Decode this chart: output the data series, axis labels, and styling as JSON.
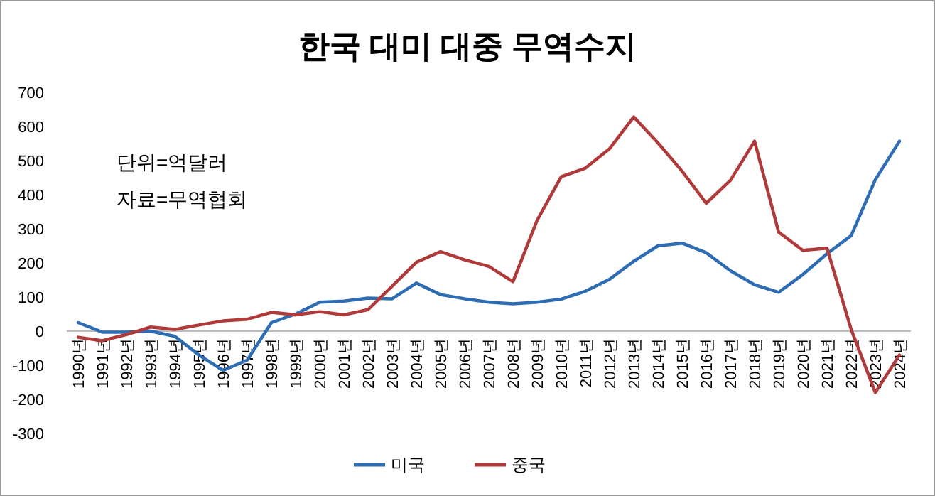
{
  "chart_data": {
    "type": "line",
    "title": "한국 대미 대중 무역수지",
    "categories": [
      "1990년",
      "1991년",
      "1992년",
      "1993년",
      "1994년",
      "1995년",
      "1996년",
      "1997년",
      "1998년",
      "1999년",
      "2000년",
      "2001년",
      "2002년",
      "2003년",
      "2004년",
      "2005년",
      "2006년",
      "2007년",
      "2008년",
      "2009년",
      "2010년",
      "2011년",
      "2012년",
      "2013년",
      "2014년",
      "2015년",
      "2016년",
      "2017년",
      "2018년",
      "2019년",
      "2020년",
      "2021년",
      "2022년",
      "2023년",
      "2024년"
    ],
    "series": [
      {
        "name": "미국",
        "color": "#2e6db4",
        "values": [
          25,
          -3,
          -3,
          0,
          -15,
          -70,
          -115,
          -85,
          25,
          50,
          85,
          88,
          97,
          95,
          141,
          107,
          95,
          85,
          80,
          85,
          94,
          117,
          152,
          205,
          250,
          258,
          230,
          177,
          136,
          114,
          166,
          227,
          280,
          444,
          557
        ]
      },
      {
        "name": "중국",
        "color": "#b03a3a",
        "values": [
          -18,
          -28,
          -10,
          12,
          5,
          18,
          30,
          35,
          55,
          48,
          57,
          48,
          63,
          132,
          202,
          233,
          209,
          190,
          145,
          325,
          453,
          478,
          535,
          628,
          552,
          469,
          375,
          442,
          557,
          290,
          237,
          243,
          5,
          -180,
          -70
        ]
      }
    ],
    "ylim": [
      -300,
      700
    ],
    "yticks": [
      -300,
      -200,
      -100,
      0,
      100,
      200,
      300,
      400,
      500,
      600,
      700
    ],
    "annotations": [
      "단위=억달러",
      "자료=무역협회"
    ],
    "legend": "bottom",
    "grid": false,
    "marker": "none",
    "line_style": "solid"
  }
}
